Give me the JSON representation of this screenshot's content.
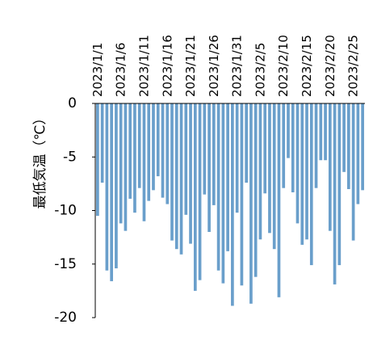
{
  "chart_data": {
    "type": "bar",
    "y_label": "最低気温（℃）",
    "color": "#6a9fcb",
    "categories": [
      "2023/1/1",
      null,
      null,
      null,
      null,
      "2023/1/6",
      null,
      null,
      null,
      null,
      "2023/1/11",
      null,
      null,
      null,
      null,
      "2023/1/16",
      null,
      null,
      null,
      null,
      "2023/1/21",
      null,
      null,
      null,
      null,
      "2023/1/26",
      null,
      null,
      null,
      null,
      "2023/1/31",
      null,
      null,
      null,
      null,
      "2023/2/5",
      null,
      null,
      null,
      null,
      "2023/2/10",
      null,
      null,
      null,
      null,
      "2023/2/15",
      null,
      null,
      null,
      null,
      "2023/2/20",
      null,
      null,
      null,
      null,
      "2023/2/25",
      null,
      null
    ],
    "values": [
      -10.5,
      -7.4,
      -15.6,
      -16.6,
      -15.4,
      -11.2,
      -11.9,
      -8.9,
      -10.2,
      -7.9,
      -11,
      -9.1,
      -8.1,
      -6.8,
      -8.8,
      -9.4,
      -12.8,
      -13.6,
      -14.1,
      -10.4,
      -13.1,
      -17.5,
      -16.5,
      -8.5,
      -12,
      -9.5,
      -15.6,
      -16.8,
      -13.8,
      -18.9,
      -10.2,
      -17,
      -7.4,
      -18.7,
      -16.2,
      -12.7,
      -8.4,
      -12.1,
      -13.6,
      -18.1,
      -7.9,
      -5.1,
      -8.3,
      -11.2,
      -13.2,
      -12.7,
      -15.1,
      -7.9,
      -5.3,
      -5.3,
      -11.9,
      -16.9,
      -15.1,
      -6.4,
      -8,
      -12.8,
      -9.4,
      -8.1
    ],
    "ylim": [
      -20,
      0
    ],
    "yticks": [
      0,
      -5,
      -10,
      -15,
      -20
    ]
  }
}
